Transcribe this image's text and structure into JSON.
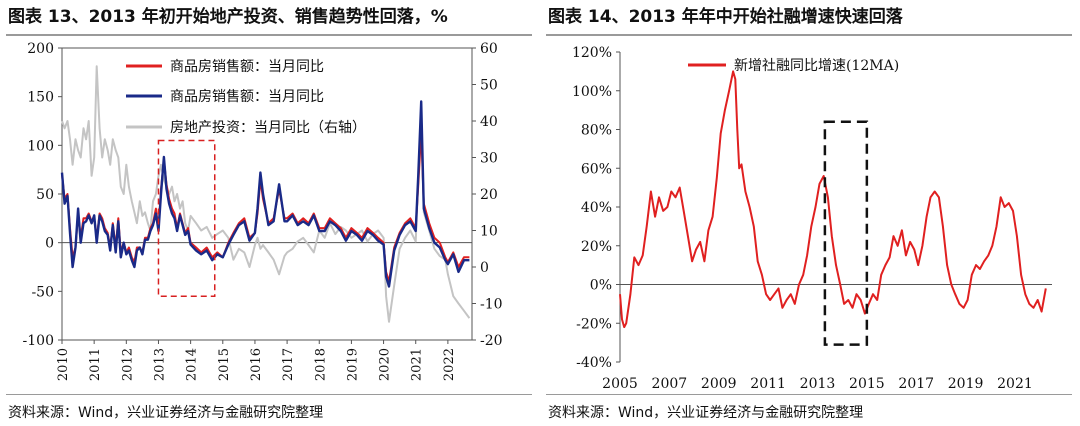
{
  "charts": [
    {
      "title": "图表 13、2013 年初开始地产投资、销售趋势性回落，%",
      "source": "资料来源：Wind，兴业证券经济与金融研究院整理"
    },
    {
      "title": "图表 14、2013 年年中开始社融增速快速回落",
      "source": "资料来源：Wind，兴业证券经济与金融研究院整理"
    }
  ],
  "chart_data": [
    {
      "type": "line",
      "x_ticks": [
        "2010",
        "2011",
        "2012",
        "2013",
        "2014",
        "2015",
        "2016",
        "2017",
        "2018",
        "2019",
        "2020",
        "2021",
        "2022"
      ],
      "x_range": [
        2010,
        2022.75
      ],
      "y_left_ticks": [
        "200",
        "150",
        "100",
        "50",
        "0",
        "-50",
        "-100"
      ],
      "y_right_ticks": [
        "60",
        "50",
        "40",
        "30",
        "20",
        "10",
        "0",
        "-10",
        "-20"
      ],
      "ylim_left": [
        -100,
        200
      ],
      "ylim_right": [
        -20,
        60
      ],
      "legend_position": "top-center",
      "highlight_box": {
        "x": [
          2013.0,
          2014.75
        ],
        "y_left": [
          -55,
          105
        ]
      },
      "series": [
        {
          "name": "商品房销售额：当月同比",
          "axis": "left",
          "color": "#e02020",
          "x": [
            2010,
            2010.08,
            2010.17,
            2010.25,
            2010.33,
            2010.42,
            2010.5,
            2010.58,
            2010.67,
            2010.75,
            2010.83,
            2010.92,
            2011,
            2011.08,
            2011.17,
            2011.25,
            2011.33,
            2011.42,
            2011.5,
            2011.58,
            2011.67,
            2011.75,
            2011.83,
            2011.92,
            2012,
            2012.08,
            2012.17,
            2012.25,
            2012.33,
            2012.42,
            2012.5,
            2012.58,
            2012.67,
            2012.75,
            2012.83,
            2012.92,
            2013,
            2013.08,
            2013.17,
            2013.25,
            2013.33,
            2013.42,
            2013.5,
            2013.58,
            2013.67,
            2013.75,
            2013.83,
            2013.92,
            2014,
            2014.17,
            2014.33,
            2014.5,
            2014.67,
            2014.83,
            2015,
            2015.17,
            2015.33,
            2015.5,
            2015.67,
            2015.83,
            2016,
            2016.08,
            2016.17,
            2016.25,
            2016.42,
            2016.58,
            2016.75,
            2016.92,
            2017,
            2017.17,
            2017.33,
            2017.5,
            2017.67,
            2017.83,
            2018,
            2018.17,
            2018.33,
            2018.5,
            2018.67,
            2018.83,
            2019,
            2019.17,
            2019.33,
            2019.5,
            2019.67,
            2019.83,
            2020,
            2020.08,
            2020.17,
            2020.33,
            2020.5,
            2020.67,
            2020.83,
            2021,
            2021.08,
            2021.17,
            2021.25,
            2021.42,
            2021.58,
            2021.75,
            2021.92,
            2022,
            2022.17,
            2022.33,
            2022.5,
            2022.67
          ],
          "values": [
            70,
            45,
            50,
            15,
            -15,
            -5,
            30,
            5,
            25,
            25,
            30,
            22,
            25,
            5,
            30,
            25,
            15,
            10,
            -5,
            20,
            -5,
            25,
            -10,
            0,
            -10,
            -5,
            -15,
            -20,
            -5,
            -5,
            -10,
            5,
            5,
            15,
            20,
            35,
            15,
            55,
            85,
            60,
            45,
            35,
            30,
            15,
            30,
            20,
            10,
            15,
            0,
            -5,
            -10,
            -5,
            -15,
            -10,
            -15,
            0,
            10,
            20,
            25,
            5,
            10,
            30,
            65,
            45,
            20,
            25,
            55,
            25,
            25,
            30,
            20,
            25,
            20,
            30,
            15,
            15,
            25,
            20,
            15,
            5,
            15,
            10,
            5,
            15,
            10,
            5,
            0,
            -30,
            -40,
            -5,
            10,
            20,
            25,
            15,
            60,
            115,
            40,
            20,
            5,
            0,
            -15,
            -20,
            -10,
            -25,
            -15,
            -15
          ]
        },
        {
          "name": "商品房销售额：当月同比",
          "axis": "left",
          "color": "#1a2a88",
          "x": [
            2010,
            2010.08,
            2010.17,
            2010.25,
            2010.33,
            2010.42,
            2010.5,
            2010.58,
            2010.67,
            2010.75,
            2010.83,
            2010.92,
            2011,
            2011.08,
            2011.17,
            2011.25,
            2011.33,
            2011.42,
            2011.5,
            2011.58,
            2011.67,
            2011.75,
            2011.83,
            2011.92,
            2012,
            2012.08,
            2012.17,
            2012.25,
            2012.33,
            2012.42,
            2012.5,
            2012.58,
            2012.67,
            2012.75,
            2012.83,
            2012.92,
            2013,
            2013.08,
            2013.17,
            2013.25,
            2013.33,
            2013.42,
            2013.5,
            2013.58,
            2013.67,
            2013.75,
            2013.83,
            2013.92,
            2014,
            2014.17,
            2014.33,
            2014.5,
            2014.67,
            2014.83,
            2015,
            2015.17,
            2015.33,
            2015.5,
            2015.67,
            2015.83,
            2016,
            2016.08,
            2016.17,
            2016.25,
            2016.42,
            2016.58,
            2016.75,
            2016.92,
            2017,
            2017.17,
            2017.33,
            2017.5,
            2017.67,
            2017.83,
            2018,
            2018.17,
            2018.33,
            2018.5,
            2018.67,
            2018.83,
            2019,
            2019.17,
            2019.33,
            2019.5,
            2019.67,
            2019.83,
            2020,
            2020.08,
            2020.17,
            2020.33,
            2020.5,
            2020.67,
            2020.83,
            2021,
            2021.08,
            2021.17,
            2021.25,
            2021.42,
            2021.58,
            2021.75,
            2021.92,
            2022,
            2022.17,
            2022.33,
            2022.5,
            2022.67
          ],
          "values": [
            72,
            40,
            48,
            10,
            -25,
            -5,
            35,
            0,
            20,
            22,
            28,
            20,
            28,
            0,
            28,
            22,
            12,
            8,
            -8,
            18,
            -10,
            22,
            -15,
            0,
            -12,
            -8,
            -18,
            -25,
            -8,
            -5,
            -12,
            3,
            3,
            12,
            18,
            30,
            12,
            50,
            88,
            55,
            40,
            30,
            25,
            12,
            28,
            18,
            8,
            12,
            -2,
            -8,
            -12,
            -8,
            -18,
            -12,
            -15,
            -2,
            8,
            18,
            22,
            2,
            10,
            35,
            72,
            50,
            18,
            22,
            60,
            22,
            22,
            28,
            18,
            22,
            18,
            28,
            12,
            12,
            22,
            18,
            12,
            2,
            12,
            8,
            2,
            12,
            8,
            2,
            -2,
            -35,
            -45,
            -8,
            8,
            18,
            22,
            12,
            70,
            145,
            35,
            15,
            0,
            -5,
            -18,
            -22,
            -12,
            -30,
            -18,
            -18
          ]
        },
        {
          "name": "房地产投资：当月同比（右轴）",
          "axis": "right",
          "color": "#c4c4c4",
          "x": [
            2010,
            2010.08,
            2010.17,
            2010.25,
            2010.33,
            2010.42,
            2010.5,
            2010.58,
            2010.67,
            2010.75,
            2010.83,
            2010.92,
            2011,
            2011.08,
            2011.17,
            2011.25,
            2011.33,
            2011.42,
            2011.5,
            2011.58,
            2011.67,
            2011.75,
            2011.83,
            2011.92,
            2012,
            2012.08,
            2012.17,
            2012.25,
            2012.33,
            2012.42,
            2012.5,
            2012.58,
            2012.67,
            2012.75,
            2012.83,
            2012.92,
            2013,
            2013.08,
            2013.17,
            2013.25,
            2013.33,
            2013.42,
            2013.5,
            2013.58,
            2013.67,
            2013.75,
            2013.83,
            2013.92,
            2014,
            2014.17,
            2014.33,
            2014.5,
            2014.67,
            2014.83,
            2015,
            2015.17,
            2015.33,
            2015.5,
            2015.67,
            2015.83,
            2016,
            2016.08,
            2016.17,
            2016.25,
            2016.42,
            2016.58,
            2016.75,
            2016.92,
            2017,
            2017.17,
            2017.33,
            2017.5,
            2017.67,
            2017.83,
            2018,
            2018.17,
            2018.33,
            2018.5,
            2018.67,
            2018.83,
            2019,
            2019.17,
            2019.33,
            2019.5,
            2019.67,
            2019.83,
            2020,
            2020.08,
            2020.17,
            2020.33,
            2020.5,
            2020.67,
            2020.83,
            2021,
            2021.08,
            2021.17,
            2021.25,
            2021.42,
            2021.58,
            2021.75,
            2021.92,
            2022,
            2022.17,
            2022.33,
            2022.5,
            2022.67
          ],
          "values": [
            40,
            38,
            40,
            35,
            28,
            35,
            32,
            30,
            38,
            35,
            40,
            25,
            30,
            55,
            38,
            30,
            35,
            32,
            28,
            35,
            32,
            30,
            22,
            20,
            28,
            22,
            18,
            15,
            12,
            18,
            14,
            15,
            12,
            10,
            18,
            20,
            25,
            28,
            24,
            22,
            20,
            22,
            18,
            20,
            16,
            18,
            12,
            10,
            14,
            12,
            10,
            11,
            8,
            9,
            10,
            8,
            2,
            5,
            4,
            0,
            6,
            8,
            5,
            6,
            4,
            2,
            -2,
            3,
            4,
            5,
            7,
            8,
            6,
            4,
            10,
            8,
            12,
            9,
            11,
            10,
            8,
            9,
            10,
            7,
            9,
            10,
            8,
            -8,
            -15,
            -5,
            5,
            8,
            10,
            7,
            24,
            38,
            15,
            10,
            5,
            3,
            2,
            -2,
            -8,
            -10,
            -12,
            -14
          ]
        }
      ]
    },
    {
      "type": "line",
      "x_ticks": [
        "2005",
        "2007",
        "2009",
        "2011",
        "2013",
        "2015",
        "2017",
        "2019",
        "2021"
      ],
      "x_range": [
        2005,
        2022.5
      ],
      "y_ticks": [
        "120%",
        "100%",
        "80%",
        "60%",
        "40%",
        "20%",
        "0%",
        "-20%",
        "-40%"
      ],
      "ylim": [
        -40,
        120
      ],
      "legend_position": "top-center",
      "highlight_box": {
        "x": [
          2013.3,
          2015.0
        ],
        "y": [
          -31,
          84
        ]
      },
      "series": [
        {
          "name": "新增社融同比增速(12MA)",
          "color": "#e02020",
          "x": [
            2005,
            2005.08,
            2005.17,
            2005.25,
            2005.42,
            2005.58,
            2005.75,
            2005.92,
            2006.08,
            2006.25,
            2006.42,
            2006.58,
            2006.75,
            2006.92,
            2007.08,
            2007.25,
            2007.42,
            2007.58,
            2007.75,
            2007.92,
            2008.08,
            2008.25,
            2008.42,
            2008.58,
            2008.75,
            2008.92,
            2009.08,
            2009.25,
            2009.42,
            2009.58,
            2009.67,
            2009.75,
            2009.83,
            2009.92,
            2010.08,
            2010.25,
            2010.42,
            2010.58,
            2010.75,
            2010.92,
            2011.08,
            2011.25,
            2011.42,
            2011.58,
            2011.75,
            2011.92,
            2012.08,
            2012.25,
            2012.42,
            2012.58,
            2012.75,
            2012.92,
            2013.08,
            2013.25,
            2013.42,
            2013.58,
            2013.75,
            2013.92,
            2014.08,
            2014.25,
            2014.42,
            2014.58,
            2014.75,
            2014.92,
            2015.08,
            2015.25,
            2015.42,
            2015.58,
            2015.75,
            2015.92,
            2016.08,
            2016.25,
            2016.42,
            2016.58,
            2016.75,
            2016.92,
            2017.08,
            2017.25,
            2017.42,
            2017.58,
            2017.75,
            2017.92,
            2018.08,
            2018.25,
            2018.42,
            2018.58,
            2018.75,
            2018.92,
            2019.08,
            2019.25,
            2019.42,
            2019.58,
            2019.75,
            2019.92,
            2020.08,
            2020.25,
            2020.42,
            2020.58,
            2020.75,
            2020.92,
            2021.08,
            2021.25,
            2021.42,
            2021.58,
            2021.75,
            2021.92,
            2022.08,
            2022.25
          ],
          "values": [
            -5,
            -18,
            -22,
            -20,
            -5,
            14,
            10,
            15,
            30,
            48,
            35,
            45,
            38,
            40,
            48,
            45,
            50,
            38,
            25,
            12,
            18,
            22,
            12,
            28,
            35,
            55,
            78,
            90,
            100,
            110,
            106,
            80,
            60,
            62,
            48,
            40,
            30,
            12,
            5,
            -5,
            -8,
            -5,
            -2,
            -12,
            -8,
            -5,
            -10,
            0,
            5,
            15,
            30,
            40,
            52,
            56,
            45,
            25,
            10,
            0,
            -10,
            -8,
            -12,
            -5,
            -8,
            -15,
            -10,
            -5,
            -8,
            5,
            10,
            14,
            25,
            20,
            28,
            15,
            22,
            18,
            10,
            20,
            35,
            45,
            48,
            45,
            30,
            10,
            0,
            -5,
            -10,
            -12,
            -8,
            5,
            10,
            8,
            12,
            15,
            20,
            30,
            45,
            40,
            42,
            38,
            25,
            5,
            -5,
            -10,
            -12,
            -8,
            -14,
            -2
          ]
        }
      ]
    }
  ]
}
